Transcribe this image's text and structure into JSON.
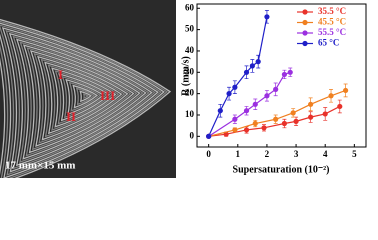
{
  "image": {
    "labels": [
      "I",
      "II",
      "III"
    ],
    "scale": "17 mm×15 mm"
  },
  "chart_data": {
    "type": "line",
    "x_label": "Supersaturation (10⁻²)",
    "y_label": "R (mm/s)",
    "xlim": [
      -0.4,
      5.4
    ],
    "ylim": [
      -5,
      62
    ],
    "xticks": [
      0,
      1,
      2,
      3,
      4,
      5
    ],
    "yticks": [
      0,
      10,
      20,
      30,
      40,
      50,
      60
    ],
    "series": [
      {
        "name": "35.5 °C",
        "color": "#e8322a",
        "x": [
          0,
          0.6,
          1.3,
          1.9,
          2.6,
          3.0,
          3.5,
          4.0,
          4.5
        ],
        "values": [
          0,
          1,
          3,
          4,
          6,
          7,
          9,
          10.5,
          14
        ],
        "errors": [
          0.5,
          1,
          1.5,
          1.5,
          2,
          2,
          2.5,
          3,
          3
        ]
      },
      {
        "name": "45.5 °C",
        "color": "#f08020",
        "x": [
          0,
          0.9,
          1.6,
          2.3,
          2.9,
          3.5,
          4.2,
          4.7
        ],
        "values": [
          0,
          3,
          6,
          8,
          11,
          15,
          19,
          21.5
        ],
        "errors": [
          0.5,
          1,
          1.5,
          2,
          2,
          3,
          3,
          3
        ]
      },
      {
        "name": "55.5 °C",
        "color": "#9b30e0",
        "x": [
          0,
          0.9,
          1.3,
          1.6,
          2.0,
          2.3,
          2.6,
          2.8
        ],
        "values": [
          0,
          8,
          12,
          15,
          19,
          22,
          29,
          30
        ],
        "errors": [
          0.5,
          2,
          2,
          2.5,
          2.5,
          3,
          2,
          2
        ]
      },
      {
        "name": "65 °C",
        "color": "#1f1fc8",
        "x": [
          0,
          0.4,
          0.7,
          0.9,
          1.3,
          1.5,
          1.7,
          2.0
        ],
        "values": [
          0,
          12,
          20,
          23,
          30,
          33,
          35,
          56
        ],
        "errors": [
          0.5,
          3,
          3,
          3,
          3,
          3,
          3,
          3
        ]
      }
    ]
  }
}
